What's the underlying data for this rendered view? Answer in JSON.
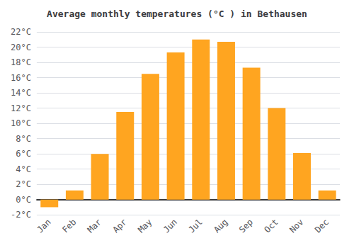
{
  "chart_data": {
    "type": "bar",
    "title": "Average monthly temperatures (°C ) in Bethausen",
    "categories": [
      "Jan",
      "Feb",
      "Mar",
      "Apr",
      "May",
      "Jun",
      "Jul",
      "Aug",
      "Sep",
      "Oct",
      "Nov",
      "Dec"
    ],
    "values": [
      -1.0,
      1.2,
      6.0,
      11.5,
      16.5,
      19.3,
      21.0,
      20.7,
      17.3,
      12.0,
      6.1,
      1.2
    ],
    "color": "#FFA520",
    "ylim": [
      -2,
      22
    ],
    "yticks": [
      {
        "value": -2,
        "label": "-2°C"
      },
      {
        "value": 0,
        "label": "0°C"
      },
      {
        "value": 2,
        "label": "2°C"
      },
      {
        "value": 4,
        "label": "4°C"
      },
      {
        "value": 6,
        "label": "6°C"
      },
      {
        "value": 8,
        "label": "8°C"
      },
      {
        "value": 10,
        "label": "10°C"
      },
      {
        "value": 12,
        "label": "12°C"
      },
      {
        "value": 14,
        "label": "14°C"
      },
      {
        "value": 16,
        "label": "16°C"
      },
      {
        "value": 18,
        "label": "18°C"
      },
      {
        "value": 20,
        "label": "20°C"
      },
      {
        "value": 22,
        "label": "22°C"
      }
    ],
    "grid": true
  }
}
